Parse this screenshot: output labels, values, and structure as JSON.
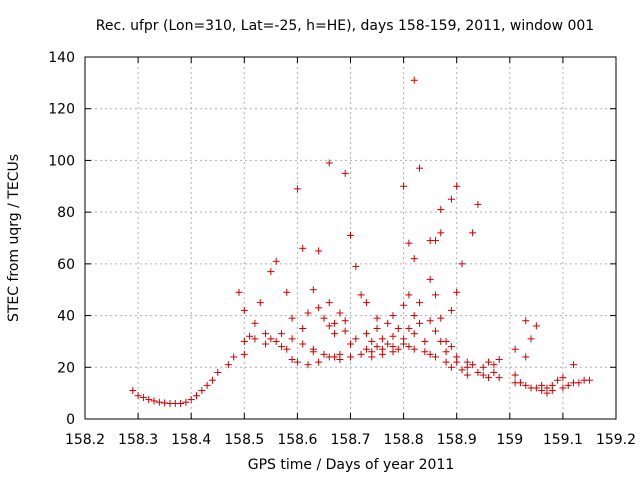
{
  "chart_data": {
    "type": "scatter",
    "title": "Rec. ufpr (Lon=310, Lat=-25, h=HE), days 158-159, 2011, window 001",
    "xlabel": "GPS time / Days of year 2011",
    "ylabel": "STEC from uqrg / TECUs",
    "xlim": [
      158.2,
      159.2
    ],
    "ylim": [
      0,
      140
    ],
    "x_ticks": [
      158.2,
      158.3,
      158.4,
      158.5,
      158.6,
      158.7,
      158.8,
      158.9,
      159,
      159.1,
      159.2
    ],
    "x_tick_labels": [
      "158.2",
      "158.3",
      "158.4",
      "158.5",
      "158.6",
      "158.7",
      "158.8",
      "158.9",
      "159",
      "159.1",
      "159.2"
    ],
    "y_ticks": [
      0,
      20,
      40,
      60,
      80,
      100,
      120,
      140
    ],
    "y_tick_labels": [
      "0",
      "20",
      "40",
      "60",
      "80",
      "100",
      "120",
      "140"
    ],
    "grid": true,
    "marker": "+",
    "color": "#cc0000",
    "points": [
      [
        158.29,
        11
      ],
      [
        158.3,
        9
      ],
      [
        158.31,
        8.3
      ],
      [
        158.32,
        7.5
      ],
      [
        158.33,
        7
      ],
      [
        158.34,
        6.5
      ],
      [
        158.35,
        6.2
      ],
      [
        158.36,
        6
      ],
      [
        158.37,
        6
      ],
      [
        158.38,
        6
      ],
      [
        158.39,
        6.5
      ],
      [
        158.4,
        7.5
      ],
      [
        158.41,
        9
      ],
      [
        158.42,
        11
      ],
      [
        158.43,
        13
      ],
      [
        158.44,
        15
      ],
      [
        158.45,
        18
      ],
      [
        158.47,
        21
      ],
      [
        158.48,
        24
      ],
      [
        158.49,
        49
      ],
      [
        158.5,
        42
      ],
      [
        158.5,
        30
      ],
      [
        158.5,
        25
      ],
      [
        158.51,
        32
      ],
      [
        158.52,
        37
      ],
      [
        158.52,
        31
      ],
      [
        158.53,
        45
      ],
      [
        158.54,
        29
      ],
      [
        158.54,
        33
      ],
      [
        158.55,
        57
      ],
      [
        158.55,
        31
      ],
      [
        158.56,
        30
      ],
      [
        158.56,
        61
      ],
      [
        158.57,
        28
      ],
      [
        158.57,
        33
      ],
      [
        158.58,
        49
      ],
      [
        158.58,
        27
      ],
      [
        158.59,
        23
      ],
      [
        158.59,
        31
      ],
      [
        158.59,
        39
      ],
      [
        158.6,
        89
      ],
      [
        158.6,
        22
      ],
      [
        158.61,
        29
      ],
      [
        158.61,
        35
      ],
      [
        158.61,
        66
      ],
      [
        158.62,
        21
      ],
      [
        158.62,
        41
      ],
      [
        158.63,
        26
      ],
      [
        158.63,
        50
      ],
      [
        158.63,
        27
      ],
      [
        158.64,
        22
      ],
      [
        158.64,
        65
      ],
      [
        158.64,
        43
      ],
      [
        158.65,
        25
      ],
      [
        158.65,
        39
      ],
      [
        158.66,
        99
      ],
      [
        158.66,
        45
      ],
      [
        158.66,
        36
      ],
      [
        158.67,
        24
      ],
      [
        158.67,
        33
      ],
      [
        158.67,
        37
      ],
      [
        158.68,
        25
      ],
      [
        158.68,
        41
      ],
      [
        158.69,
        95
      ],
      [
        158.69,
        38
      ],
      [
        158.69,
        34
      ],
      [
        158.7,
        71
      ],
      [
        158.7,
        24
      ],
      [
        158.7,
        29
      ],
      [
        158.71,
        31
      ],
      [
        158.71,
        59
      ],
      [
        158.72,
        25
      ],
      [
        158.72,
        48
      ],
      [
        158.73,
        27
      ],
      [
        158.73,
        45
      ],
      [
        158.73,
        33
      ],
      [
        158.74,
        26
      ],
      [
        158.74,
        30
      ],
      [
        158.75,
        28
      ],
      [
        158.75,
        39
      ],
      [
        158.75,
        35
      ],
      [
        158.76,
        27
      ],
      [
        158.76,
        31
      ],
      [
        158.77,
        29
      ],
      [
        158.77,
        37
      ],
      [
        158.78,
        32
      ],
      [
        158.78,
        28
      ],
      [
        158.78,
        40
      ],
      [
        158.79,
        27
      ],
      [
        158.79,
        35
      ],
      [
        158.8,
        90
      ],
      [
        158.8,
        29
      ],
      [
        158.8,
        44
      ],
      [
        158.8,
        31
      ],
      [
        158.81,
        68
      ],
      [
        158.81,
        48
      ],
      [
        158.81,
        35
      ],
      [
        158.81,
        28
      ],
      [
        158.82,
        131
      ],
      [
        158.82,
        62
      ],
      [
        158.82,
        40
      ],
      [
        158.82,
        33
      ],
      [
        158.82,
        27
      ],
      [
        158.83,
        97
      ],
      [
        158.83,
        45
      ],
      [
        158.83,
        37
      ],
      [
        158.84,
        30
      ],
      [
        158.84,
        26
      ],
      [
        158.85,
        69
      ],
      [
        158.85,
        54
      ],
      [
        158.85,
        38
      ],
      [
        158.85,
        25
      ],
      [
        158.86,
        69
      ],
      [
        158.86,
        48
      ],
      [
        158.86,
        34
      ],
      [
        158.86,
        24
      ],
      [
        158.87,
        81
      ],
      [
        158.87,
        72
      ],
      [
        158.87,
        39
      ],
      [
        158.87,
        30
      ],
      [
        158.88,
        26
      ],
      [
        158.88,
        22
      ],
      [
        158.89,
        85
      ],
      [
        158.89,
        42
      ],
      [
        158.89,
        28
      ],
      [
        158.89,
        20
      ],
      [
        158.9,
        90
      ],
      [
        158.9,
        49
      ],
      [
        158.9,
        24
      ],
      [
        158.91,
        60
      ],
      [
        158.91,
        19
      ],
      [
        158.92,
        22
      ],
      [
        158.92,
        17
      ],
      [
        158.93,
        72
      ],
      [
        158.93,
        21
      ],
      [
        158.94,
        18
      ],
      [
        158.94,
        83
      ],
      [
        158.95,
        20
      ],
      [
        158.95,
        17
      ],
      [
        158.96,
        16
      ],
      [
        158.96,
        22
      ],
      [
        158.97,
        21
      ],
      [
        158.97,
        18
      ],
      [
        158.98,
        23
      ],
      [
        158.98,
        16
      ],
      [
        159.01,
        27
      ],
      [
        159.01,
        17
      ],
      [
        159.01,
        14
      ],
      [
        159.02,
        14
      ],
      [
        159.03,
        38
      ],
      [
        159.03,
        24
      ],
      [
        159.03,
        13
      ],
      [
        159.04,
        31
      ],
      [
        159.04,
        12
      ],
      [
        159.05,
        36
      ],
      [
        159.05,
        12
      ],
      [
        159.06,
        13
      ],
      [
        159.06,
        11
      ],
      [
        159.07,
        10
      ],
      [
        159.07,
        12
      ],
      [
        159.08,
        11
      ],
      [
        159.08,
        13
      ],
      [
        159.09,
        15
      ],
      [
        159.1,
        16
      ],
      [
        159.1,
        12
      ],
      [
        159.11,
        13
      ],
      [
        159.12,
        21
      ],
      [
        159.12,
        14
      ],
      [
        159.13,
        14
      ],
      [
        159.14,
        15
      ],
      [
        159.15,
        15
      ],
      [
        158.88,
        30
      ],
      [
        158.9,
        22
      ],
      [
        158.92,
        20
      ],
      [
        158.74,
        24
      ],
      [
        158.76,
        25
      ],
      [
        158.78,
        26
      ],
      [
        158.68,
        23
      ],
      [
        158.66,
        24
      ]
    ]
  }
}
